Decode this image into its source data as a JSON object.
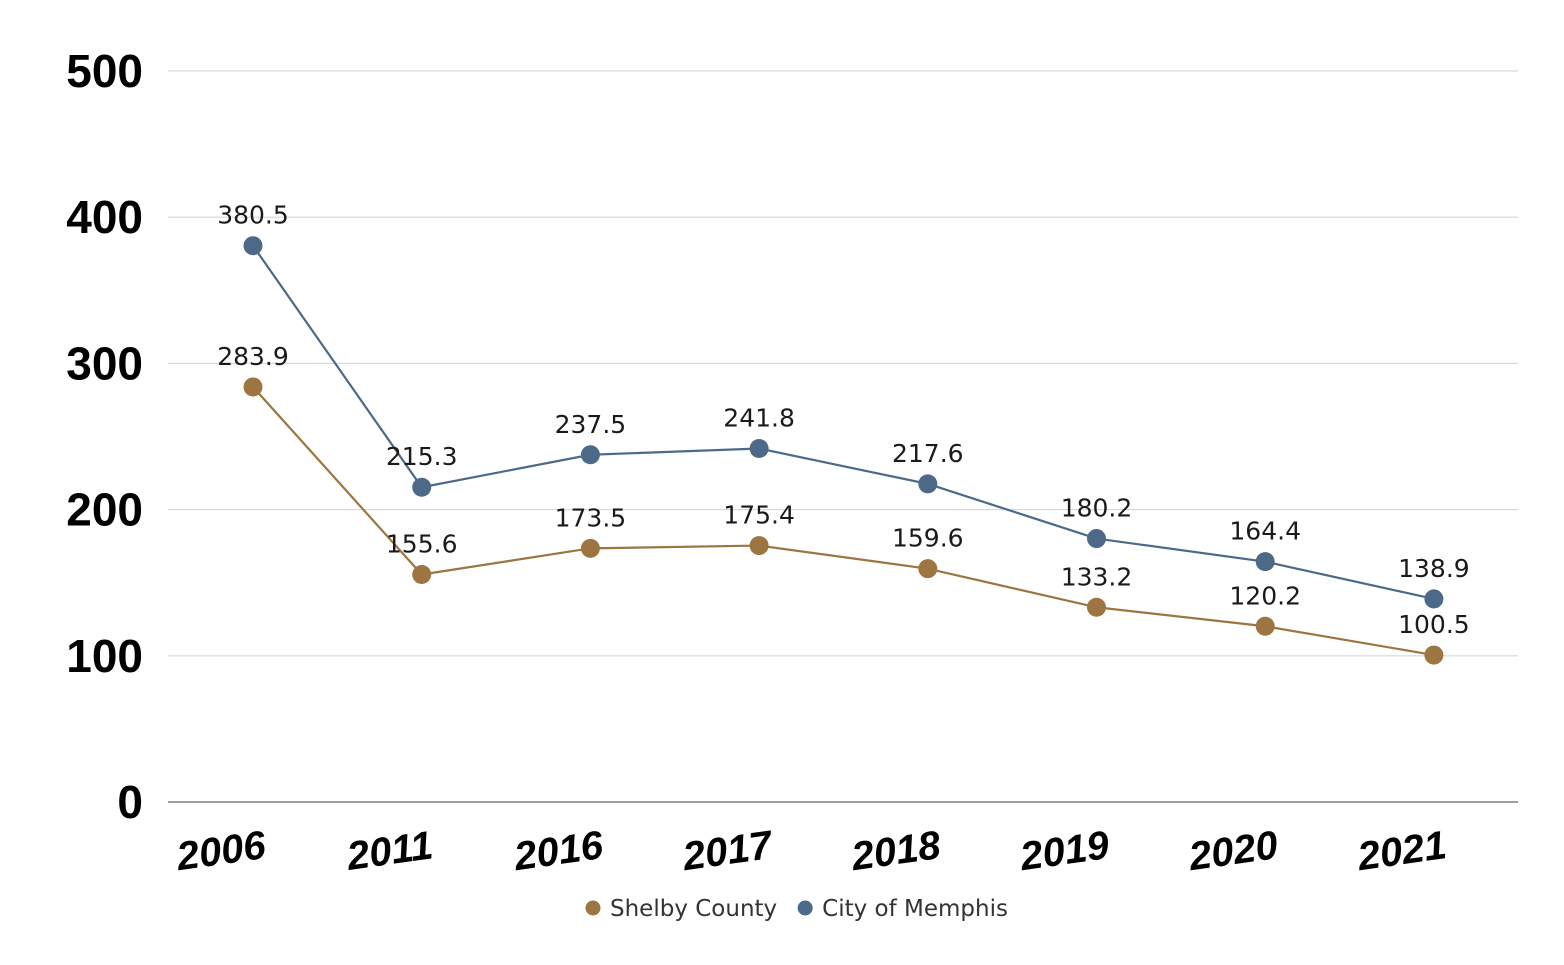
{
  "chart_data": {
    "type": "line",
    "title": "",
    "xlabel": "",
    "ylabel": "",
    "ylim": [
      0,
      500
    ],
    "yticks": [
      "0",
      "100",
      "200",
      "300",
      "400",
      "500"
    ],
    "categories": [
      "2006",
      "2011",
      "2016",
      "2017",
      "2018",
      "2019",
      "2020",
      "2021"
    ],
    "grid": true,
    "legend_position": "bottom",
    "series": [
      {
        "name": "Shelby County",
        "color": "#9c7541",
        "values": [
          283.9,
          155.6,
          173.5,
          175.4,
          159.6,
          133.2,
          120.2,
          100.5
        ],
        "labels": [
          "283.9",
          "155.6",
          "173.5",
          "175.4",
          "159.6",
          "133.2",
          "120.2",
          "100.5"
        ]
      },
      {
        "name": "City of Memphis",
        "color": "#4c6a88",
        "values": [
          380.5,
          215.3,
          237.5,
          241.8,
          217.6,
          180.2,
          164.4,
          138.9
        ],
        "labels": [
          "380.5",
          "215.3",
          "237.5",
          "241.8",
          "217.6",
          "180.2",
          "164.4",
          "138.9"
        ]
      }
    ]
  }
}
